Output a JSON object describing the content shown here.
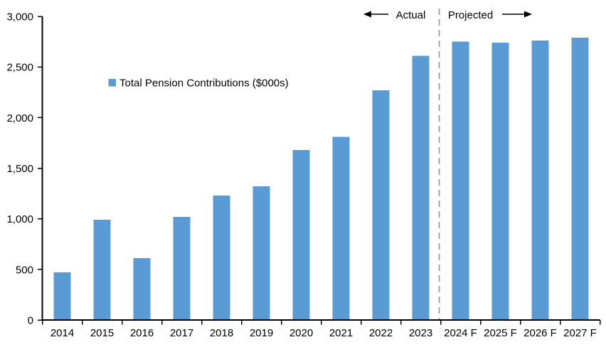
{
  "chart_data": {
    "type": "bar",
    "title": "",
    "legend": "Total Pension Contributions ($000s)",
    "categories": [
      "2014",
      "2015",
      "2016",
      "2017",
      "2018",
      "2019",
      "2020",
      "2021",
      "2022",
      "2023",
      "2024 F",
      "2025 F",
      "2026 F",
      "2027 F"
    ],
    "values": [
      470,
      990,
      610,
      1020,
      1230,
      1320,
      1680,
      1810,
      2270,
      2610,
      2750,
      2740,
      2760,
      2790
    ],
    "xlabel": "",
    "ylabel": "",
    "ylim": [
      0,
      3000
    ],
    "y_ticks": [
      0,
      500,
      1000,
      1500,
      2000,
      2500,
      3000
    ],
    "y_tick_labels": [
      "0",
      "500",
      "1,000",
      "1,500",
      "2,000",
      "2,500",
      "3,000"
    ],
    "grid": false,
    "legend_position": "inside-upper-left",
    "annotations": {
      "actual_label": "Actual",
      "projected_label": "Projected",
      "divider_between": [
        "2023",
        "2024 F"
      ]
    },
    "colors": {
      "bar": "#5B9BD5",
      "divider": "#A6A6A6",
      "axis": "#000000",
      "text": "#000000"
    }
  }
}
